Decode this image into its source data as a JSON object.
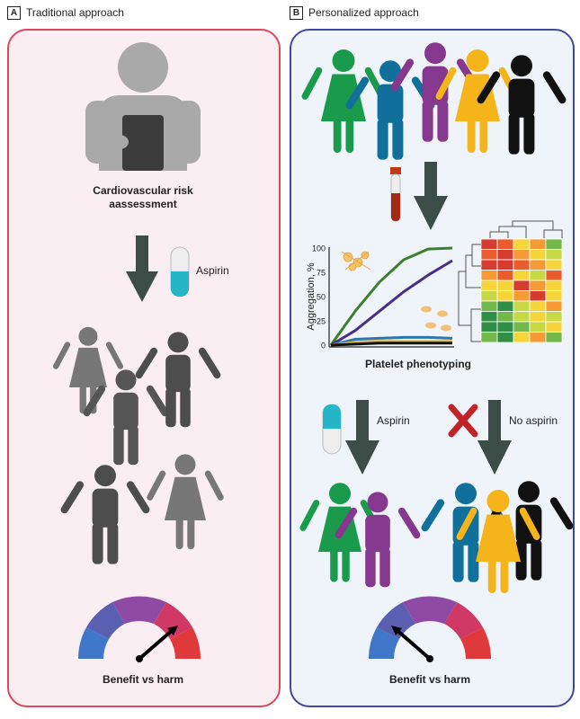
{
  "panel_a": {
    "letter": "A",
    "title": "Traditional approach",
    "assessment_label": "Cardiovascular risk aassessment",
    "drug_label": "Aspirin",
    "gauge_label": "Benefit vs harm"
  },
  "panel_b": {
    "letter": "B",
    "title": "Personalized approach",
    "y_axis_label": "Aggregation, %",
    "y_ticks": [
      "100",
      "75",
      "50",
      "25",
      "0"
    ],
    "phenotyping_label": "Platelet phenotyping",
    "aspirin_label": "Aspirin",
    "no_aspirin_label": "No aspirin",
    "gauge_label": "Benefit vs harm"
  },
  "colors": {
    "panel_a_border": "#d9485f",
    "panel_b_border": "#3f4a9f",
    "green": "#1a9b4b",
    "blue": "#11709b",
    "purple": "#86388f",
    "yellow": "#f4b41a",
    "black": "#111111",
    "gray_dark": "#4d4d4d",
    "arrow": "#3c4d47"
  },
  "chart_data": {
    "type": "line",
    "ylabel": "Aggregation, %",
    "ylim": [
      0,
      100
    ],
    "series": [
      {
        "color": "#3d7f2f",
        "values": [
          0,
          35,
          65,
          88,
          99,
          100
        ]
      },
      {
        "color": "#4a2d8a",
        "values": [
          0,
          15,
          35,
          55,
          72,
          87
        ]
      },
      {
        "color": "#2f76ad",
        "values": [
          0,
          6,
          7,
          8,
          8,
          7
        ]
      },
      {
        "color": "#e0b74e",
        "values": [
          0,
          3,
          4,
          4,
          4,
          4
        ]
      },
      {
        "color": "#111111",
        "values": [
          0,
          1,
          2,
          2,
          2,
          2
        ]
      }
    ]
  }
}
